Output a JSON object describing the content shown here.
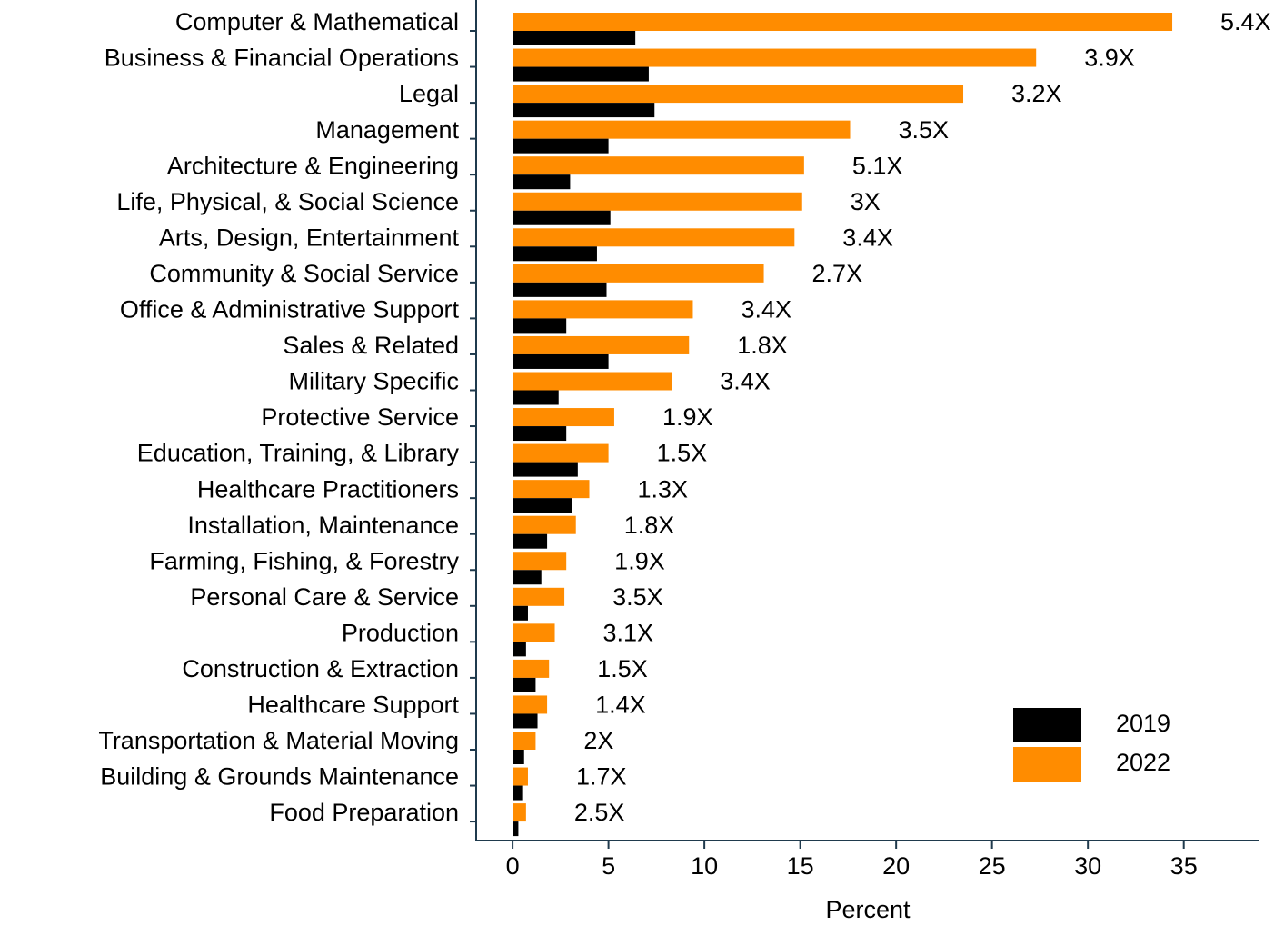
{
  "chart_data": {
    "type": "barh",
    "xlabel": "Percent",
    "categories": [
      "Computer & Mathematical",
      "Business & Financial Operations",
      "Legal",
      "Management",
      "Architecture & Engineering",
      "Life, Physical, & Social Science",
      "Arts, Design, Entertainment",
      "Community & Social Service",
      "Office & Administrative Support",
      "Sales & Related",
      "Military Specific",
      "Protective Service",
      "Education, Training, & Library",
      "Healthcare Practitioners",
      "Installation, Maintenance",
      "Farming, Fishing, & Forestry",
      "Personal Care & Service",
      "Production",
      "Construction & Extraction",
      "Healthcare Support",
      "Transportation & Material Moving",
      "Building & Grounds Maintenance",
      "Food Preparation"
    ],
    "series": [
      {
        "name": "2019",
        "color": "#000000",
        "values": [
          6.4,
          7.1,
          7.4,
          5.0,
          3.0,
          5.1,
          4.4,
          4.9,
          2.8,
          5.0,
          2.4,
          2.8,
          3.4,
          3.1,
          1.8,
          1.5,
          0.8,
          0.7,
          1.2,
          1.3,
          0.6,
          0.5,
          0.3
        ]
      },
      {
        "name": "2022",
        "color": "#ff8c00",
        "values": [
          34.4,
          27.3,
          23.5,
          17.6,
          15.2,
          15.1,
          14.7,
          13.1,
          9.4,
          9.2,
          8.3,
          5.3,
          5.0,
          4.0,
          3.3,
          2.8,
          2.7,
          2.2,
          1.9,
          1.8,
          1.2,
          0.8,
          0.7
        ]
      }
    ],
    "annotations": [
      "5.4X",
      "3.9X",
      "3.2X",
      "3.5X",
      "5.1X",
      "3X",
      "3.4X",
      "2.7X",
      "3.4X",
      "1.8X",
      "3.4X",
      "1.9X",
      "1.5X",
      "1.3X",
      "1.8X",
      "1.9X",
      "3.5X",
      "3.1X",
      "1.5X",
      "1.4X",
      "2X",
      "1.7X",
      "2.5X"
    ],
    "xlim": [
      -1.9,
      38.9
    ],
    "xticks": [
      0,
      5,
      10,
      15,
      20,
      25,
      30,
      35
    ],
    "legend": "lower right"
  }
}
